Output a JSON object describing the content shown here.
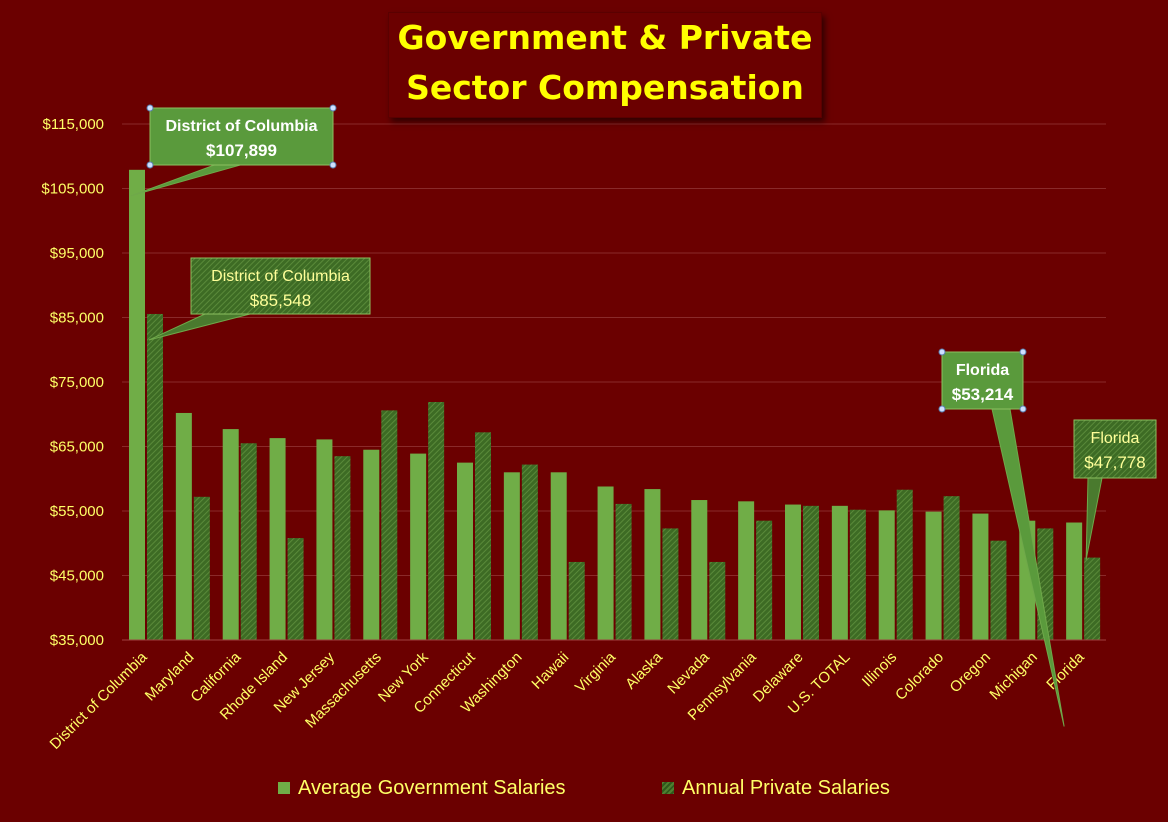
{
  "title": {
    "line1": "Government & Private",
    "line2": "Sector Compensation"
  },
  "colors": {
    "background": "#6b0000",
    "gov_bar": "#70ad47",
    "priv_bar": "#3d6b24",
    "title": "#ffff00",
    "text": "#ffff66",
    "grid": "#8a2a2a"
  },
  "chart_data": {
    "type": "bar",
    "categories": [
      "District of Columbia",
      "Maryland",
      "California",
      "Rhode Island",
      "New Jersey",
      "Massachusetts",
      "New York",
      "Connecticut",
      "Washington",
      "Hawaii",
      "Virginia",
      "Alaska",
      "Nevada",
      "Pennsylvania",
      "Delaware",
      "U.S. TOTAL",
      "Illinois",
      "Colorado",
      "Oregon",
      "Michigan",
      "Florida"
    ],
    "series": [
      {
        "name": "Average Government Salaries",
        "values": [
          107899,
          70200,
          67700,
          66300,
          66100,
          64500,
          63900,
          62500,
          61000,
          61000,
          58800,
          58400,
          56700,
          56500,
          56000,
          55800,
          55100,
          54900,
          54600,
          53500,
          53214
        ]
      },
      {
        "name": "Annual Private Salaries",
        "values": [
          85548,
          57200,
          65500,
          50800,
          63500,
          70600,
          71900,
          67200,
          62200,
          47100,
          56100,
          52300,
          47100,
          53500,
          55800,
          55200,
          58300,
          57300,
          50400,
          52300,
          47778
        ]
      }
    ],
    "ylim": [
      35000,
      115000
    ],
    "yticks": [
      35000,
      45000,
      55000,
      65000,
      75000,
      85000,
      95000,
      105000,
      115000
    ],
    "ytick_labels": [
      "$35,000",
      "$45,000",
      "$55,000",
      "$65,000",
      "$75,000",
      "$85,000",
      "$95,000",
      "$105,000",
      "$115,000"
    ],
    "grid": true,
    "legend": "bottom",
    "annotations": [
      {
        "series": 0,
        "index": 0,
        "line1": "District of Columbia",
        "line2": "$107,899",
        "style": "solid"
      },
      {
        "series": 1,
        "index": 0,
        "line1": "District of Columbia",
        "line2": "$85,548",
        "style": "hatched"
      },
      {
        "series": 0,
        "index": 20,
        "line1": "Florida",
        "line2": "$53,214",
        "style": "solid"
      },
      {
        "series": 1,
        "index": 20,
        "line1": "Florida",
        "line2": "$47,778",
        "style": "hatched"
      }
    ]
  }
}
